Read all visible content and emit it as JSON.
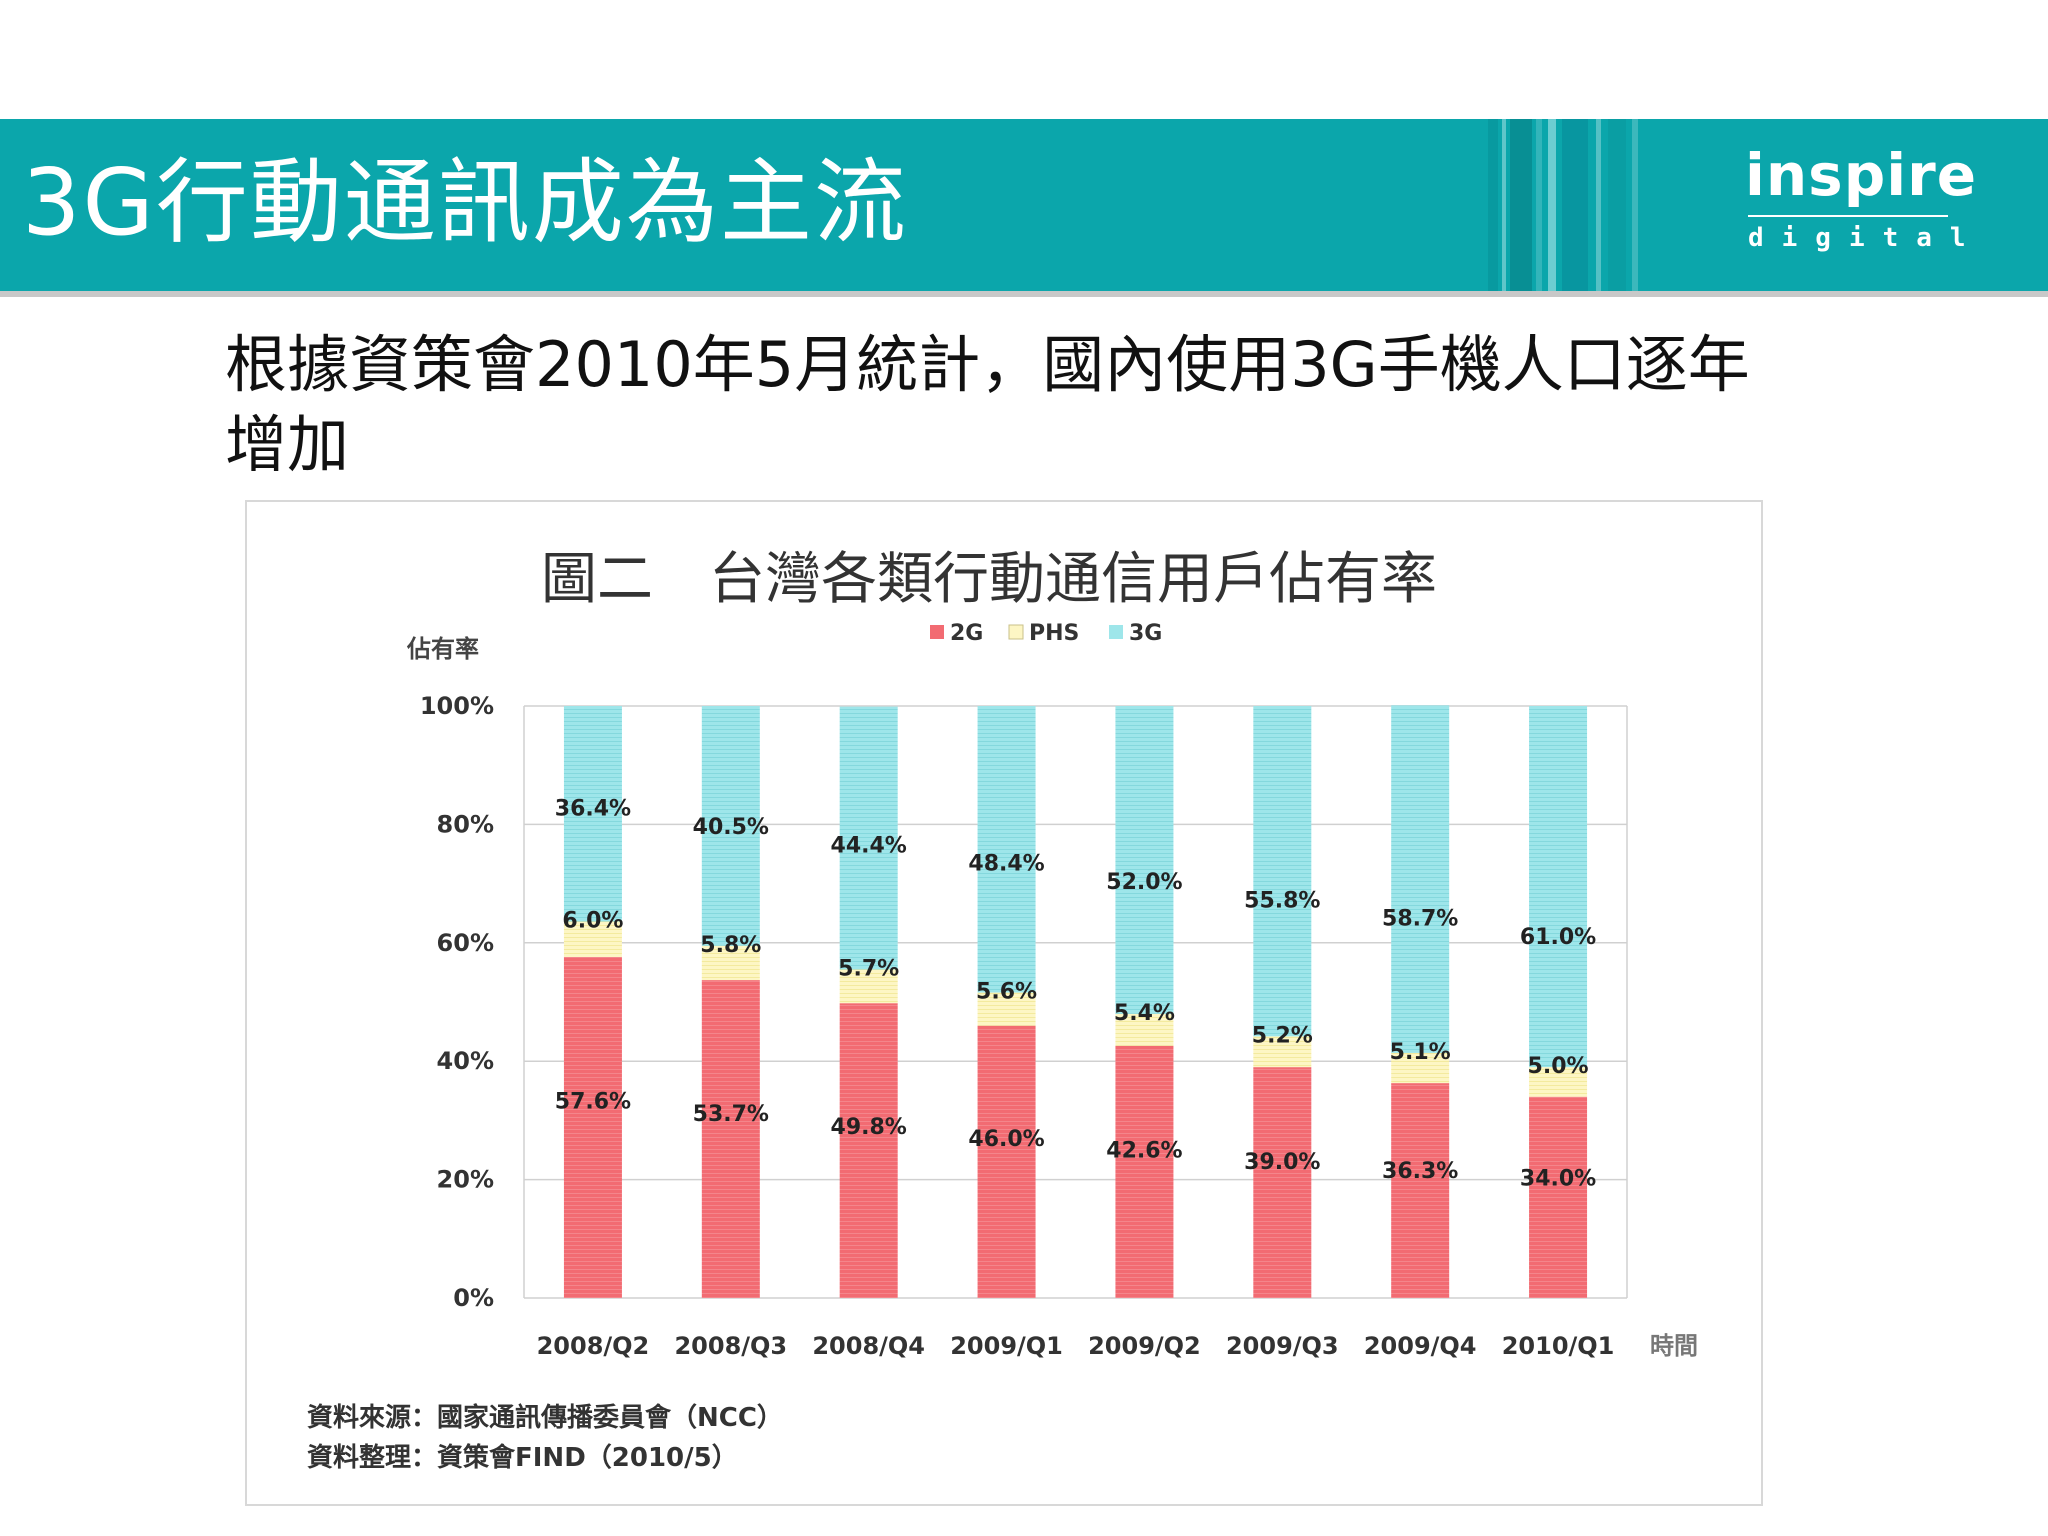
{
  "slide": {
    "title": "3G行動通訊成為主流",
    "subtitle": "根據資策會2010年5月統計，國內使用3G手機人口逐年增加"
  },
  "logo": {
    "main": "inspire",
    "sub": "digital"
  },
  "colors": {
    "banner": "#0ba6ab",
    "series_2g": "#f26b72",
    "series_phs": "#fdf6c4",
    "series_3g": "#9ee6ea"
  },
  "chart_data": {
    "type": "bar",
    "stacked": true,
    "title": "圖二　台灣各類行動通信用戶佔有率",
    "ylabel": "佔有率",
    "xlabel": "時間",
    "ylim": [
      0,
      100
    ],
    "yticks": [
      "0%",
      "20%",
      "40%",
      "60%",
      "80%",
      "100%"
    ],
    "categories": [
      "2008/Q2",
      "2008/Q3",
      "2008/Q4",
      "2009/Q1",
      "2009/Q2",
      "2009/Q3",
      "2009/Q4",
      "2010/Q1"
    ],
    "series": [
      {
        "name": "2G",
        "values": [
          57.6,
          53.7,
          49.8,
          46.0,
          42.6,
          39.0,
          36.3,
          34.0
        ],
        "labels": [
          "57.6%",
          "53.7%",
          "49.8%",
          "46.0%",
          "42.6%",
          "39.0%",
          "36.3%",
          "34.0%"
        ]
      },
      {
        "name": "PHS",
        "values": [
          6.0,
          5.8,
          5.7,
          5.6,
          5.4,
          5.2,
          5.1,
          5.0
        ],
        "labels": [
          "6.0%",
          "5.8%",
          "5.7%",
          "5.6%",
          "5.4%",
          "5.2%",
          "5.1%",
          "5.0%"
        ]
      },
      {
        "name": "3G",
        "values": [
          36.4,
          40.5,
          44.4,
          48.4,
          52.0,
          55.8,
          58.7,
          61.0
        ],
        "labels": [
          "36.4%",
          "40.5%",
          "44.4%",
          "48.4%",
          "52.0%",
          "55.8%",
          "58.7%",
          "61.0%"
        ]
      }
    ],
    "legend_position": "top-center",
    "grid": true,
    "source_lines": [
      "資料來源：國家通訊傳播委員會（NCC）",
      "資料整理：資策會FIND（2010/5）"
    ]
  }
}
